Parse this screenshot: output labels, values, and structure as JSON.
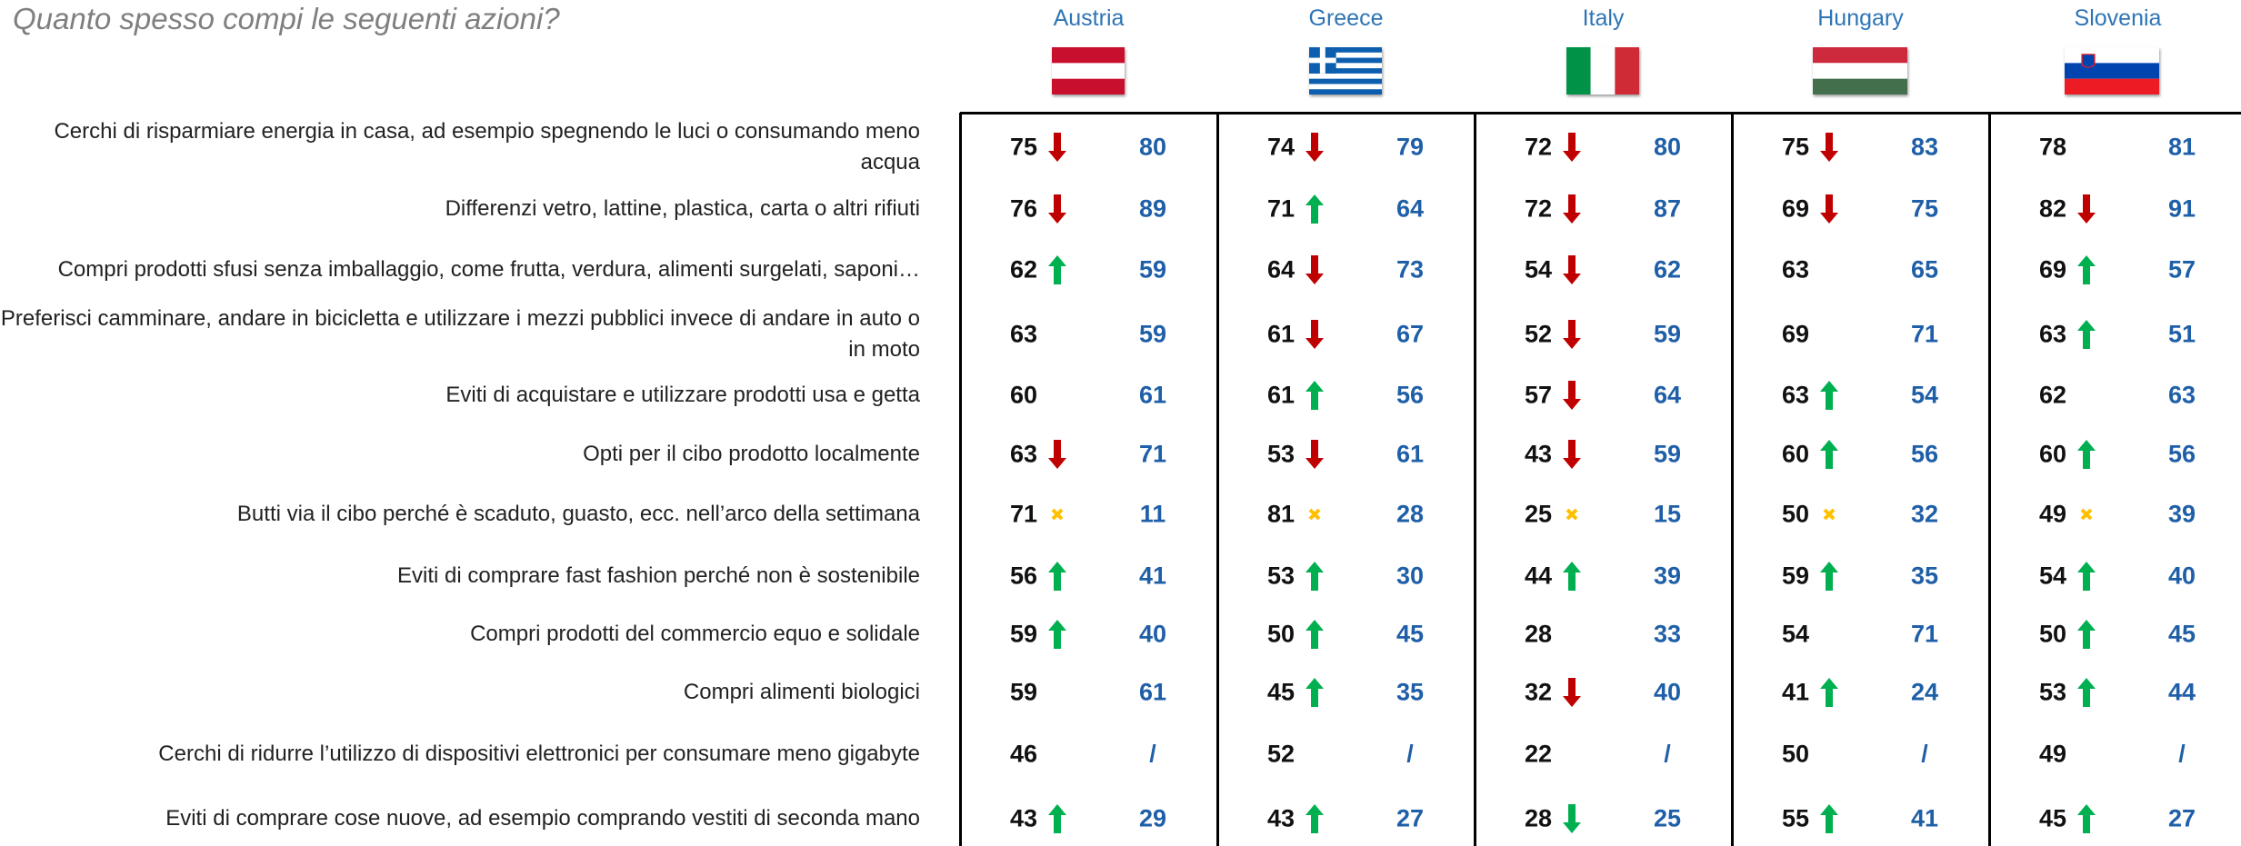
{
  "title": "Quanto spesso compi le seguenti azioni?",
  "countries": [
    "Austria",
    "Greece",
    "Italy",
    "Hungary",
    "Slovenia"
  ],
  "rows": [
    {
      "label": "Cerchi di risparmiare energia in casa, ad esempio spegnendo le luci o consumando meno acqua",
      "cells": [
        {
          "value": 75,
          "trend": "down",
          "compare": 80
        },
        {
          "value": 74,
          "trend": "down",
          "compare": 79
        },
        {
          "value": 72,
          "trend": "down",
          "compare": 80
        },
        {
          "value": 75,
          "trend": "down",
          "compare": 83
        },
        {
          "value": 78,
          "trend": null,
          "compare": 81
        }
      ]
    },
    {
      "label": "Differenzi vetro, lattine, plastica, carta o altri rifiuti",
      "cells": [
        {
          "value": 76,
          "trend": "down",
          "compare": 89
        },
        {
          "value": 71,
          "trend": "up",
          "compare": 64
        },
        {
          "value": 72,
          "trend": "down",
          "compare": 87
        },
        {
          "value": 69,
          "trend": "down",
          "compare": 75
        },
        {
          "value": 82,
          "trend": "down",
          "compare": 91
        }
      ]
    },
    {
      "label": "Compri prodotti sfusi senza imballaggio, come frutta, verdura, alimenti surgelati, saponi…",
      "cells": [
        {
          "value": 62,
          "trend": "up",
          "compare": 59
        },
        {
          "value": 64,
          "trend": "down",
          "compare": 73
        },
        {
          "value": 54,
          "trend": "down",
          "compare": 62
        },
        {
          "value": 63,
          "trend": null,
          "compare": 65
        },
        {
          "value": 69,
          "trend": "up",
          "compare": 57
        }
      ]
    },
    {
      "label": "Preferisci camminare, andare in bicicletta e utilizzare i mezzi pubblici invece di andare in auto o in moto",
      "cells": [
        {
          "value": 63,
          "trend": null,
          "compare": 59
        },
        {
          "value": 61,
          "trend": "down",
          "compare": 67
        },
        {
          "value": 52,
          "trend": "down",
          "compare": 59
        },
        {
          "value": 69,
          "trend": null,
          "compare": 71
        },
        {
          "value": 63,
          "trend": "up",
          "compare": 51
        }
      ]
    },
    {
      "label": "Eviti di acquistare e utilizzare prodotti usa e getta",
      "cells": [
        {
          "value": 60,
          "trend": null,
          "compare": 61
        },
        {
          "value": 61,
          "trend": "up",
          "compare": 56
        },
        {
          "value": 57,
          "trend": "down",
          "compare": 64
        },
        {
          "value": 63,
          "trend": "up",
          "compare": 54
        },
        {
          "value": 62,
          "trend": null,
          "compare": 63
        }
      ]
    },
    {
      "label": "Opti per il cibo prodotto localmente",
      "cells": [
        {
          "value": 63,
          "trend": "down",
          "compare": 71
        },
        {
          "value": 53,
          "trend": "down",
          "compare": 61
        },
        {
          "value": 43,
          "trend": "down",
          "compare": 59
        },
        {
          "value": 60,
          "trend": "up",
          "compare": 56
        },
        {
          "value": 60,
          "trend": "up",
          "compare": 56
        }
      ]
    },
    {
      "label": "Butti via il cibo perché è scaduto, guasto, ecc. nell’arco della settimana",
      "cells": [
        {
          "value": 71,
          "trend": "x",
          "compare": 11
        },
        {
          "value": 81,
          "trend": "x",
          "compare": 28
        },
        {
          "value": 25,
          "trend": "x",
          "compare": 15
        },
        {
          "value": 50,
          "trend": "x",
          "compare": 32
        },
        {
          "value": 49,
          "trend": "x",
          "compare": 39
        }
      ]
    },
    {
      "label": "Eviti di comprare fast fashion perché non è sostenibile",
      "cells": [
        {
          "value": 56,
          "trend": "up",
          "compare": 41
        },
        {
          "value": 53,
          "trend": "up",
          "compare": 30
        },
        {
          "value": 44,
          "trend": "up",
          "compare": 39
        },
        {
          "value": 59,
          "trend": "up",
          "compare": 35
        },
        {
          "value": 54,
          "trend": "up",
          "compare": 40
        }
      ]
    },
    {
      "label": "Compri prodotti del commercio equo e solidale",
      "cells": [
        {
          "value": 59,
          "trend": "up",
          "compare": 40
        },
        {
          "value": 50,
          "trend": "up",
          "compare": 45
        },
        {
          "value": 28,
          "trend": null,
          "compare": 33
        },
        {
          "value": 54,
          "trend": null,
          "compare": 71
        },
        {
          "value": 50,
          "trend": "up",
          "compare": 45
        }
      ]
    },
    {
      "label": "Compri alimenti biologici",
      "cells": [
        {
          "value": 59,
          "trend": null,
          "compare": 61
        },
        {
          "value": 45,
          "trend": "up",
          "compare": 35
        },
        {
          "value": 32,
          "trend": "down",
          "compare": 40
        },
        {
          "value": 41,
          "trend": "up",
          "compare": 24
        },
        {
          "value": 53,
          "trend": "up",
          "compare": 44
        }
      ]
    },
    {
      "label": "Cerchi di ridurre l’utilizzo di dispositivi elettronici per consumare meno gigabyte",
      "cells": [
        {
          "value": 46,
          "trend": null,
          "compare": "/"
        },
        {
          "value": 52,
          "trend": null,
          "compare": "/"
        },
        {
          "value": 22,
          "trend": null,
          "compare": "/"
        },
        {
          "value": 50,
          "trend": null,
          "compare": "/"
        },
        {
          "value": 49,
          "trend": null,
          "compare": "/"
        }
      ]
    },
    {
      "label": "Eviti di comprare cose nuove, ad esempio comprando vestiti di seconda mano",
      "cells": [
        {
          "value": 43,
          "trend": "up",
          "compare": 29
        },
        {
          "value": 43,
          "trend": "up",
          "compare": 27
        },
        {
          "value": 28,
          "trend": "down-green",
          "compare": 25
        },
        {
          "value": 55,
          "trend": "up",
          "compare": 41
        },
        {
          "value": 45,
          "trend": "up",
          "compare": 27
        }
      ]
    }
  ]
}
